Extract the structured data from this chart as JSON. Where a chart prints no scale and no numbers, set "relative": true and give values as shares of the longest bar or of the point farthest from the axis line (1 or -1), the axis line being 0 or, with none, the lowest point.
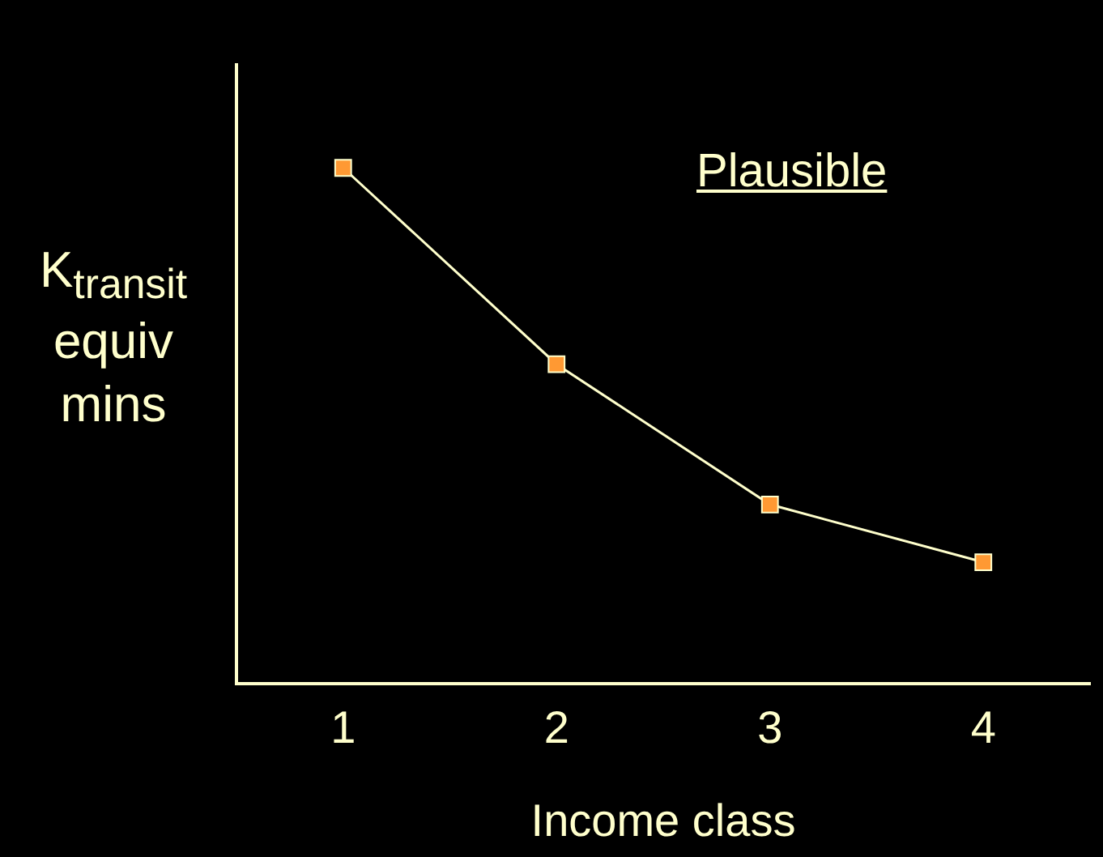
{
  "chart_data": {
    "type": "line",
    "xlabel": "Income class",
    "ylabel": "K$_{transit}$ equiv mins",
    "annotations": [
      "Plausible"
    ],
    "categories": [
      "1",
      "2",
      "3",
      "4"
    ],
    "relative": true,
    "marker": "square",
    "legend": false,
    "grid": false,
    "series": [
      {
        "color": "#ffffcc",
        "values": [
          1,
          0.619,
          0.347,
          0.235
        ]
      }
    ]
  }
}
